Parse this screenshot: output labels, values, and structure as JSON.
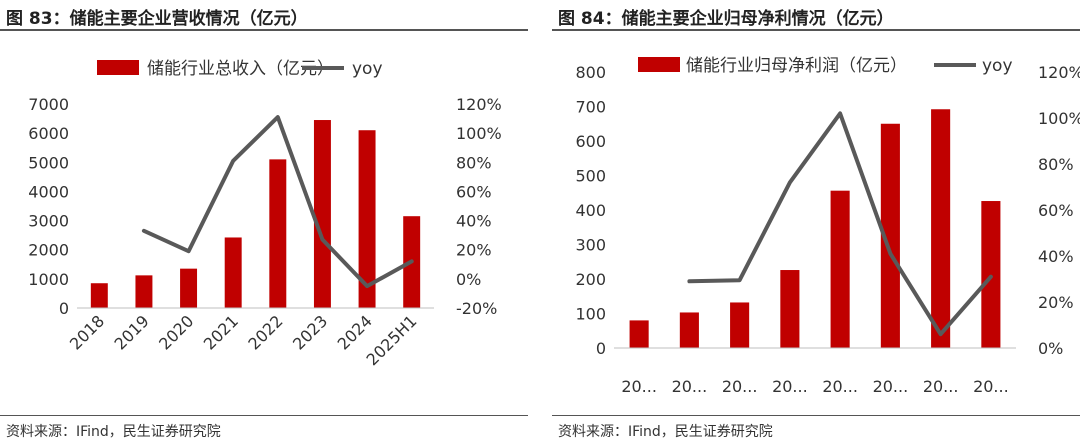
{
  "left": {
    "title": "图 83：储能主要企业营收情况（亿元）",
    "source": "资料来源：IFind，民生证券研究院",
    "chart_data": {
      "type": "bar",
      "categories": [
        "2018",
        "2019",
        "2020",
        "2021",
        "2022",
        "2023",
        "2024",
        "2025H1"
      ],
      "series": [
        {
          "name": "储能行业总收入（亿元）",
          "type": "bar",
          "axis": "left",
          "values": [
            850,
            1120,
            1350,
            2420,
            5100,
            6450,
            6100,
            3150
          ]
        },
        {
          "name": "yoy",
          "type": "line",
          "axis": "right",
          "values": [
            null,
            33,
            19,
            81,
            111,
            27,
            -5,
            12
          ]
        }
      ],
      "y_left_ticks": [
        "0",
        "1000",
        "2000",
        "3000",
        "4000",
        "5000",
        "6000",
        "7000"
      ],
      "y_right_ticks": [
        "-20%",
        "0%",
        "20%",
        "40%",
        "60%",
        "80%",
        "100%",
        "120%"
      ],
      "ylim_left": [
        0,
        7000
      ],
      "ylim_right": [
        -20,
        120
      ],
      "legend": "top",
      "grid": false,
      "colors": {
        "bar": "#c00000",
        "line": "#595959"
      }
    }
  },
  "right": {
    "title": "图 84：储能主要企业归母净利情况（亿元）",
    "source": "资料来源：IFind，民生证券研究院",
    "chart_data": {
      "type": "bar",
      "categories": [
        "20...",
        "20...",
        "20...",
        "20...",
        "20...",
        "20...",
        "20...",
        "20..."
      ],
      "series": [
        {
          "name": "储能行业归母净利润（亿元）",
          "type": "bar",
          "axis": "left",
          "values": [
            80,
            103,
            132,
            226,
            456,
            650,
            692,
            426
          ]
        },
        {
          "name": "yoy",
          "type": "line",
          "axis": "right",
          "values": [
            null,
            29,
            29.5,
            72,
            102,
            41,
            6,
            31
          ]
        }
      ],
      "y_left_ticks": [
        "0",
        "100",
        "200",
        "300",
        "400",
        "500",
        "600",
        "700",
        "800"
      ],
      "y_right_ticks": [
        "0%",
        "20%",
        "40%",
        "60%",
        "80%",
        "100%",
        "120%"
      ],
      "ylim_left": [
        0,
        800
      ],
      "ylim_right": [
        0,
        120
      ],
      "legend": "top",
      "grid": false,
      "colors": {
        "bar": "#c00000",
        "line": "#595959"
      }
    }
  }
}
